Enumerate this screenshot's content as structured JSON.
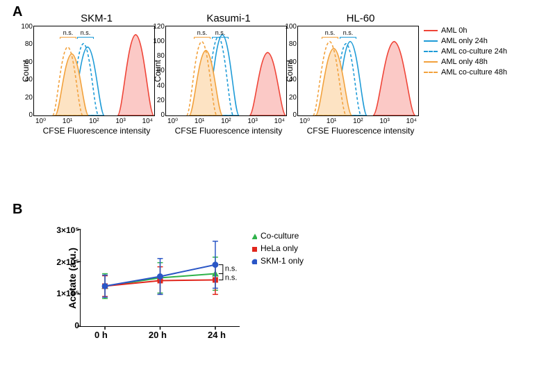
{
  "panels": {
    "A": "A",
    "B": "B"
  },
  "panelA": {
    "histograms": [
      {
        "title": "SKM-1",
        "y_label": "Count",
        "x_label": "CFSE Fluorescence intensity",
        "y_ticks": [
          "100",
          "80",
          "60",
          "40",
          "20",
          "0"
        ],
        "x_ticks": [
          "10⁰",
          "10¹",
          "10²",
          "10³",
          "10⁴"
        ],
        "curves": {
          "red": {
            "peak_x": 148,
            "peak_h": 118,
            "width": 12
          },
          "blue_s": {
            "peak_x": 78,
            "peak_h": 100,
            "width": 11
          },
          "blue_d": {
            "peak_x": 72,
            "peak_h": 105,
            "width": 10
          },
          "org_s": {
            "peak_x": 55,
            "peak_h": 90,
            "width": 11
          },
          "org_d": {
            "peak_x": 49,
            "peak_h": 100,
            "width": 10
          }
        }
      },
      {
        "title": "Kasumi-1",
        "y_label": "Count",
        "x_label": "CFSE Fluorescence intensity",
        "y_ticks": [
          "120",
          "100",
          "80",
          "60",
          "40",
          "20",
          "0"
        ],
        "x_ticks": [
          "10⁰",
          "10¹",
          "10²",
          "10³",
          "10⁴"
        ],
        "curves": {
          "red": {
            "peak_x": 148,
            "peak_h": 92,
            "width": 12
          },
          "blue_s": {
            "peak_x": 82,
            "peak_h": 118,
            "width": 11
          },
          "blue_d": {
            "peak_x": 76,
            "peak_h": 115,
            "width": 10
          },
          "org_s": {
            "peak_x": 58,
            "peak_h": 95,
            "width": 11
          },
          "org_d": {
            "peak_x": 52,
            "peak_h": 108,
            "width": 10
          }
        }
      },
      {
        "title": "HL-60",
        "y_label": "Count",
        "x_label": "CFSE Fluorescence intensity",
        "y_ticks": [
          "100",
          "80",
          "60",
          "40",
          "20",
          "0"
        ],
        "x_ticks": [
          "10⁰",
          "10¹",
          "10²",
          "10³",
          "10⁴"
        ],
        "curves": {
          "red": {
            "peak_x": 140,
            "peak_h": 108,
            "width": 14
          },
          "blue_s": {
            "peak_x": 76,
            "peak_h": 108,
            "width": 11
          },
          "blue_d": {
            "peak_x": 70,
            "peak_h": 105,
            "width": 10
          },
          "org_s": {
            "peak_x": 52,
            "peak_h": 98,
            "width": 12
          },
          "org_d": {
            "peak_x": 46,
            "peak_h": 108,
            "width": 11
          }
        }
      }
    ],
    "ns_label": "n.s.",
    "legend": [
      {
        "label": "AML 0h",
        "color": "#ef4437",
        "style": "solid"
      },
      {
        "label": "AML only 24h",
        "color": "#1e9bd7",
        "style": "solid"
      },
      {
        "label": "AML co-culture 24h",
        "color": "#1e9bd7",
        "style": "dashed"
      },
      {
        "label": "AML only 48h",
        "color": "#f2a13c",
        "style": "solid"
      },
      {
        "label": "AML co-culture 48h",
        "color": "#f2a13c",
        "style": "dashed"
      }
    ],
    "colors": {
      "red_fill": "#fbc9c6",
      "red_stroke": "#ef4437",
      "blue": "#1e9bd7",
      "orange": "#f2a13c",
      "orange_fill": "#fde3c3"
    }
  },
  "panelB": {
    "y_label": "Acetate (a.u.)",
    "y_ticks": [
      "3×10⁵",
      "2×10⁵",
      "1×10⁵",
      "0"
    ],
    "x_ticks": [
      "0 h",
      "20 h",
      "24 h"
    ],
    "series": [
      {
        "name": "Co-culture",
        "color": "#2fb24a",
        "marker": "triangle",
        "points": [
          {
            "x": 35,
            "y": 82,
            "elo": 18,
            "ehi": 18
          },
          {
            "x": 115,
            "y": 70,
            "elo": 22,
            "ehi": 22
          },
          {
            "x": 195,
            "y": 64,
            "elo": 24,
            "ehi": 24
          }
        ]
      },
      {
        "name": "HeLa only",
        "color": "#e1261c",
        "marker": "square",
        "points": [
          {
            "x": 35,
            "y": 82,
            "elo": 15,
            "ehi": 15
          },
          {
            "x": 115,
            "y": 74,
            "elo": 20,
            "ehi": 20
          },
          {
            "x": 195,
            "y": 73,
            "elo": 21,
            "ehi": 21
          }
        ]
      },
      {
        "name": "SKM-1 only",
        "color": "#2a56c6",
        "marker": "circle",
        "points": [
          {
            "x": 35,
            "y": 82,
            "elo": 16,
            "ehi": 16
          },
          {
            "x": 115,
            "y": 68,
            "elo": 26,
            "ehi": 26
          },
          {
            "x": 195,
            "y": 51,
            "elo": 34,
            "ehi": 34
          }
        ]
      }
    ],
    "ns_annotations": [
      "n.s.",
      "n.s."
    ],
    "bracket_color": "#000000"
  },
  "styling": {
    "background": "#ffffff",
    "font": "Arial",
    "axis_color": "#000000"
  }
}
